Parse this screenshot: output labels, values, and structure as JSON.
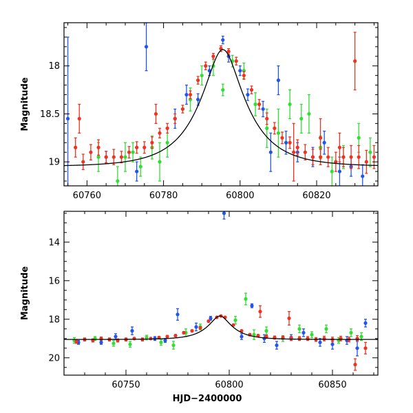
{
  "chart_data": [
    {
      "type": "scatter",
      "panel": "top",
      "xlabel": "",
      "ylabel": "Magnitude",
      "xlim": [
        60754,
        60836
      ],
      "ylim": [
        19.25,
        17.55
      ],
      "y_inverted": true,
      "xticks": [
        60760,
        60780,
        60800,
        60820
      ],
      "xtick_labels": [
        "60760",
        "60780",
        "60800",
        "60820"
      ],
      "yticks": [
        18,
        18.5,
        19
      ],
      "ytick_labels": [
        "18",
        "18.5",
        "19"
      ],
      "grid": false,
      "legend": "none",
      "model_curve": {
        "name": "",
        "color": "#000000",
        "t0": 60795.5,
        "baseline_mag": 19.05,
        "peak_mag": 17.83,
        "tE": 12
      },
      "series": [
        {
          "name": "",
          "color": "#2255ee",
          "x": [
            60755,
            60765,
            60773,
            60775.5,
            60783,
            60786,
            60789,
            60792,
            60795.5,
            60797,
            60800,
            60802,
            60806,
            60808,
            60810,
            60812,
            60815,
            60819,
            60822,
            60826,
            60829,
            60832
          ],
          "y": [
            18.55,
            18.95,
            19.1,
            17.8,
            18.55,
            18.3,
            18.35,
            18.05,
            17.73,
            17.9,
            18.05,
            18.3,
            18.45,
            18.9,
            18.15,
            18.8,
            18.9,
            18.95,
            18.8,
            19.1,
            19.05,
            19.15
          ],
          "yerr": [
            0.85,
            0.06,
            0.1,
            0.25,
            0.1,
            0.1,
            0.06,
            0.05,
            0.04,
            0.06,
            0.05,
            0.06,
            0.08,
            0.2,
            0.15,
            0.12,
            0.1,
            0.1,
            0.12,
            0.15,
            0.1,
            0.12
          ]
        },
        {
          "name": "",
          "color": "#33dd33",
          "x": [
            60763,
            60768,
            60770,
            60772,
            60774,
            60777,
            60779,
            60781,
            60787,
            60790,
            60793,
            60795.5,
            60798,
            60801,
            60804,
            60807,
            60810,
            60813,
            60816,
            60818,
            60821,
            60824,
            60827,
            60831,
            60834
          ],
          "y": [
            18.95,
            19.2,
            18.95,
            18.9,
            19.05,
            18.85,
            19.0,
            18.8,
            18.35,
            18.1,
            18.0,
            18.25,
            17.95,
            18.05,
            18.4,
            18.65,
            18.7,
            18.4,
            18.55,
            18.5,
            18.85,
            19.1,
            18.95,
            18.75,
            18.9
          ],
          "yerr": [
            0.15,
            0.15,
            0.15,
            0.1,
            0.1,
            0.12,
            0.2,
            0.15,
            0.12,
            0.1,
            0.1,
            0.06,
            0.06,
            0.08,
            0.12,
            0.2,
            0.25,
            0.15,
            0.15,
            0.2,
            0.12,
            0.15,
            0.12,
            0.15,
            0.15
          ]
        },
        {
          "name": "",
          "color": "#ee3322",
          "x": [
            60757,
            60759,
            60761,
            60763,
            60765,
            60767,
            60769,
            60771,
            60773,
            60775,
            60777,
            60779,
            60781,
            60783,
            60785,
            60787,
            60789,
            60791,
            60793,
            60795,
            60797,
            60799,
            60801,
            60803,
            60805,
            60807,
            60809,
            60811,
            60813,
            60815,
            60817,
            60819,
            60821,
            60823,
            60825,
            60827,
            60829,
            60831,
            60833,
            60835,
            60758,
            60778,
            60814,
            60821,
            60826,
            60830
          ],
          "y": [
            18.85,
            19.0,
            18.9,
            18.85,
            18.95,
            18.95,
            18.95,
            18.9,
            18.85,
            18.85,
            18.8,
            18.7,
            18.65,
            18.55,
            18.45,
            18.3,
            18.15,
            18.0,
            17.9,
            17.82,
            17.85,
            17.95,
            18.1,
            18.25,
            18.4,
            18.55,
            18.65,
            18.75,
            18.8,
            18.85,
            18.9,
            18.95,
            18.95,
            18.95,
            19.0,
            18.95,
            18.95,
            18.95,
            19.0,
            18.95,
            18.55,
            18.5,
            18.9,
            18.75,
            18.85,
            17.95
          ],
          "yerr": [
            0.1,
            0.08,
            0.08,
            0.08,
            0.06,
            0.08,
            0.06,
            0.06,
            0.06,
            0.06,
            0.06,
            0.05,
            0.05,
            0.05,
            0.04,
            0.04,
            0.04,
            0.04,
            0.03,
            0.03,
            0.03,
            0.04,
            0.04,
            0.04,
            0.05,
            0.06,
            0.06,
            0.06,
            0.06,
            0.08,
            0.08,
            0.08,
            0.08,
            0.1,
            0.1,
            0.1,
            0.12,
            0.12,
            0.12,
            0.12,
            0.15,
            0.1,
            0.3,
            0.2,
            0.15,
            0.3
          ]
        }
      ]
    },
    {
      "type": "scatter",
      "panel": "bottom",
      "xlabel": "HJD−2400000",
      "ylabel": "Magnitude",
      "xlim": [
        60720,
        60872
      ],
      "ylim": [
        20.9,
        12.4
      ],
      "y_inverted": true,
      "xticks": [
        60750,
        60800,
        60850
      ],
      "xtick_labels": [
        "60750",
        "60800",
        "60850"
      ],
      "yticks": [
        14,
        16,
        18,
        20
      ],
      "ytick_labels": [
        "14",
        "16",
        "18",
        "20"
      ],
      "grid": false,
      "legend": "none",
      "model_curve": {
        "name": "",
        "color": "#000000",
        "t0": 60795.5,
        "baseline_mag": 19.05,
        "peak_mag": 17.83,
        "tE": 12
      },
      "series": [
        {
          "name": "",
          "color": "#2255ee",
          "x": [
            60727,
            60738,
            60745,
            60753,
            60764,
            60769,
            60775,
            60784,
            60791,
            60797.5,
            60806,
            60811,
            60817,
            60823,
            60830,
            60836,
            60844,
            60850,
            60857,
            60862,
            60866
          ],
          "y": [
            19.2,
            19.2,
            18.9,
            18.6,
            19.0,
            19.1,
            17.75,
            18.4,
            17.95,
            12.5,
            18.9,
            17.3,
            19.0,
            19.35,
            18.95,
            18.7,
            19.2,
            19.3,
            19.1,
            19.5,
            18.2
          ],
          "yerr": [
            0.1,
            0.1,
            0.15,
            0.2,
            0.1,
            0.1,
            0.3,
            0.2,
            0.1,
            0.3,
            0.15,
            0.1,
            0.2,
            0.2,
            0.15,
            0.2,
            0.2,
            0.25,
            0.2,
            0.4,
            0.2
          ]
        },
        {
          "name": "",
          "color": "#33dd33",
          "x": [
            60725,
            60735,
            60744,
            60752,
            60760,
            60767,
            60773,
            60779,
            60786,
            60803,
            60808,
            60812,
            60818,
            60826,
            60834,
            60840,
            60847,
            60853,
            60859,
            60864
          ],
          "y": [
            19.1,
            19.0,
            19.25,
            19.3,
            18.95,
            19.2,
            19.35,
            18.7,
            18.4,
            18.05,
            16.95,
            18.8,
            18.6,
            19.0,
            18.5,
            18.8,
            18.5,
            19.1,
            18.7,
            18.9
          ],
          "yerr": [
            0.15,
            0.1,
            0.15,
            0.15,
            0.12,
            0.15,
            0.2,
            0.2,
            0.15,
            0.2,
            0.3,
            0.25,
            0.2,
            0.15,
            0.2,
            0.15,
            0.2,
            0.15,
            0.2,
            0.2
          ]
        },
        {
          "name": "",
          "color": "#ee3322",
          "x": [
            60726,
            60730,
            60734,
            60738,
            60742,
            60746,
            60750,
            60754,
            60758,
            60762,
            60766,
            60770,
            60774,
            60778,
            60782,
            60786,
            60790,
            60794,
            60796,
            60798,
            60802,
            60806,
            60810,
            60814,
            60815,
            60818,
            60822,
            60826,
            60829,
            60830,
            60834,
            60838,
            60842,
            60846,
            60850,
            60854,
            60858,
            60861,
            60862,
            60866
          ],
          "y": [
            19.15,
            19.05,
            19.1,
            19.0,
            19.05,
            19.1,
            19.05,
            19.0,
            19.05,
            19.0,
            18.95,
            18.9,
            18.85,
            18.7,
            18.6,
            18.45,
            18.1,
            17.9,
            17.83,
            17.9,
            18.3,
            18.6,
            18.8,
            18.85,
            17.6,
            18.9,
            18.95,
            18.95,
            17.95,
            19.0,
            19.0,
            19.0,
            19.05,
            19.0,
            19.05,
            19.0,
            19.05,
            20.35,
            19.0,
            19.5
          ],
          "yerr": [
            0.1,
            0.08,
            0.08,
            0.08,
            0.08,
            0.08,
            0.08,
            0.06,
            0.08,
            0.06,
            0.06,
            0.06,
            0.06,
            0.06,
            0.05,
            0.05,
            0.05,
            0.04,
            0.04,
            0.04,
            0.05,
            0.05,
            0.06,
            0.06,
            0.3,
            0.08,
            0.08,
            0.08,
            0.35,
            0.1,
            0.1,
            0.1,
            0.1,
            0.12,
            0.12,
            0.12,
            0.12,
            0.3,
            0.15,
            0.3
          ]
        }
      ]
    }
  ]
}
